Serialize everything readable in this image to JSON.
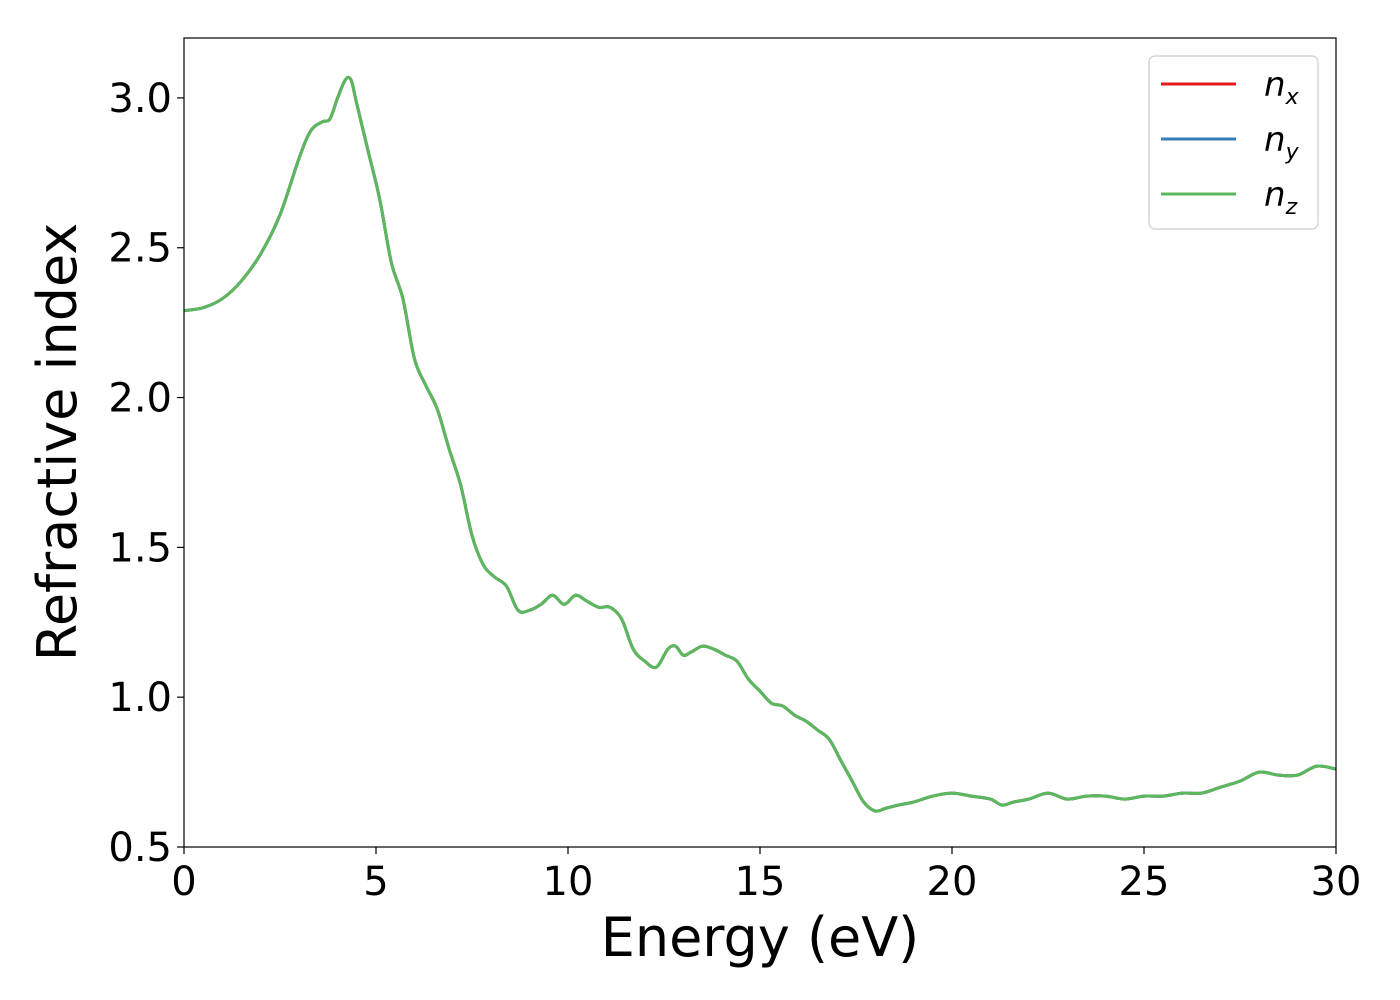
{
  "chart_data": {
    "type": "line",
    "xlabel": "Energy (eV)",
    "ylabel": "Refractive index",
    "xlim": [
      0,
      30
    ],
    "ylim": [
      0.5,
      3.2
    ],
    "x_ticks": [
      "0",
      "5",
      "10",
      "15",
      "20",
      "25",
      "30"
    ],
    "y_ticks": [
      "0.5",
      "1.0",
      "1.5",
      "2.0",
      "2.5",
      "3.0"
    ],
    "x_tick_values": [
      0,
      5,
      10,
      15,
      20,
      25,
      30
    ],
    "y_tick_values": [
      0.5,
      1.0,
      1.5,
      2.0,
      2.5,
      3.0
    ],
    "grid": false,
    "legend_position": "top-right",
    "x": [
      0,
      0.5,
      1.0,
      1.5,
      2.0,
      2.5,
      3.0,
      3.3,
      3.6,
      3.8,
      4.0,
      4.2,
      4.35,
      4.5,
      4.8,
      5.1,
      5.4,
      5.7,
      6.0,
      6.3,
      6.6,
      6.9,
      7.2,
      7.5,
      7.8,
      8.1,
      8.4,
      8.7,
      9.0,
      9.3,
      9.6,
      9.9,
      10.2,
      10.5,
      10.8,
      11.1,
      11.4,
      11.7,
      12.0,
      12.3,
      12.6,
      12.8,
      13.0,
      13.2,
      13.5,
      13.8,
      14.1,
      14.4,
      14.7,
      15.0,
      15.3,
      15.6,
      15.9,
      16.2,
      16.5,
      16.8,
      17.1,
      17.4,
      17.7,
      18.0,
      18.3,
      18.6,
      19.0,
      19.5,
      20.0,
      20.5,
      21.0,
      21.3,
      21.6,
      22.0,
      22.5,
      23.0,
      23.5,
      24.0,
      24.5,
      25.0,
      25.5,
      26.0,
      26.5,
      27.0,
      27.5,
      28.0,
      28.5,
      29.0,
      29.5,
      30.0
    ],
    "series": [
      {
        "name": "n_x",
        "color": "#e41a1c",
        "values": [
          2.29,
          2.3,
          2.33,
          2.39,
          2.48,
          2.61,
          2.8,
          2.89,
          2.92,
          2.93,
          3.0,
          3.06,
          3.06,
          2.98,
          2.82,
          2.66,
          2.45,
          2.33,
          2.13,
          2.04,
          1.96,
          1.83,
          1.71,
          1.54,
          1.44,
          1.4,
          1.37,
          1.29,
          1.29,
          1.31,
          1.34,
          1.31,
          1.34,
          1.32,
          1.3,
          1.3,
          1.26,
          1.16,
          1.12,
          1.1,
          1.16,
          1.17,
          1.14,
          1.15,
          1.17,
          1.16,
          1.14,
          1.12,
          1.06,
          1.02,
          0.98,
          0.97,
          0.94,
          0.92,
          0.89,
          0.86,
          0.79,
          0.72,
          0.65,
          0.62,
          0.63,
          0.64,
          0.65,
          0.67,
          0.68,
          0.67,
          0.66,
          0.64,
          0.65,
          0.66,
          0.68,
          0.66,
          0.67,
          0.67,
          0.66,
          0.67,
          0.67,
          0.68,
          0.68,
          0.7,
          0.72,
          0.75,
          0.74,
          0.74,
          0.77,
          0.76
        ]
      },
      {
        "name": "n_y",
        "color": "#377eb8",
        "values": [
          2.29,
          2.3,
          2.33,
          2.39,
          2.48,
          2.61,
          2.8,
          2.89,
          2.92,
          2.93,
          3.0,
          3.06,
          3.06,
          2.98,
          2.82,
          2.66,
          2.45,
          2.33,
          2.13,
          2.04,
          1.96,
          1.83,
          1.71,
          1.54,
          1.44,
          1.4,
          1.37,
          1.29,
          1.29,
          1.31,
          1.34,
          1.31,
          1.34,
          1.32,
          1.3,
          1.3,
          1.26,
          1.16,
          1.12,
          1.1,
          1.16,
          1.17,
          1.14,
          1.15,
          1.17,
          1.16,
          1.14,
          1.12,
          1.06,
          1.02,
          0.98,
          0.97,
          0.94,
          0.92,
          0.89,
          0.86,
          0.79,
          0.72,
          0.65,
          0.62,
          0.63,
          0.64,
          0.65,
          0.67,
          0.68,
          0.67,
          0.66,
          0.64,
          0.65,
          0.66,
          0.68,
          0.66,
          0.67,
          0.67,
          0.66,
          0.67,
          0.67,
          0.68,
          0.68,
          0.7,
          0.72,
          0.75,
          0.74,
          0.74,
          0.77,
          0.76
        ]
      },
      {
        "name": "n_z",
        "color": "#5cb85c",
        "values": [
          2.29,
          2.3,
          2.33,
          2.39,
          2.48,
          2.61,
          2.8,
          2.89,
          2.92,
          2.93,
          3.0,
          3.06,
          3.06,
          2.98,
          2.82,
          2.66,
          2.45,
          2.33,
          2.13,
          2.04,
          1.96,
          1.83,
          1.71,
          1.54,
          1.44,
          1.4,
          1.37,
          1.29,
          1.29,
          1.31,
          1.34,
          1.31,
          1.34,
          1.32,
          1.3,
          1.3,
          1.26,
          1.16,
          1.12,
          1.1,
          1.16,
          1.17,
          1.14,
          1.15,
          1.17,
          1.16,
          1.14,
          1.12,
          1.06,
          1.02,
          0.98,
          0.97,
          0.94,
          0.92,
          0.89,
          0.86,
          0.79,
          0.72,
          0.65,
          0.62,
          0.63,
          0.64,
          0.65,
          0.67,
          0.68,
          0.67,
          0.66,
          0.64,
          0.65,
          0.66,
          0.68,
          0.66,
          0.67,
          0.67,
          0.66,
          0.67,
          0.67,
          0.68,
          0.68,
          0.7,
          0.72,
          0.75,
          0.74,
          0.74,
          0.77,
          0.76
        ]
      }
    ],
    "legend": [
      {
        "base": "n",
        "sub": "x"
      },
      {
        "base": "n",
        "sub": "y"
      },
      {
        "base": "n",
        "sub": "z"
      }
    ]
  }
}
